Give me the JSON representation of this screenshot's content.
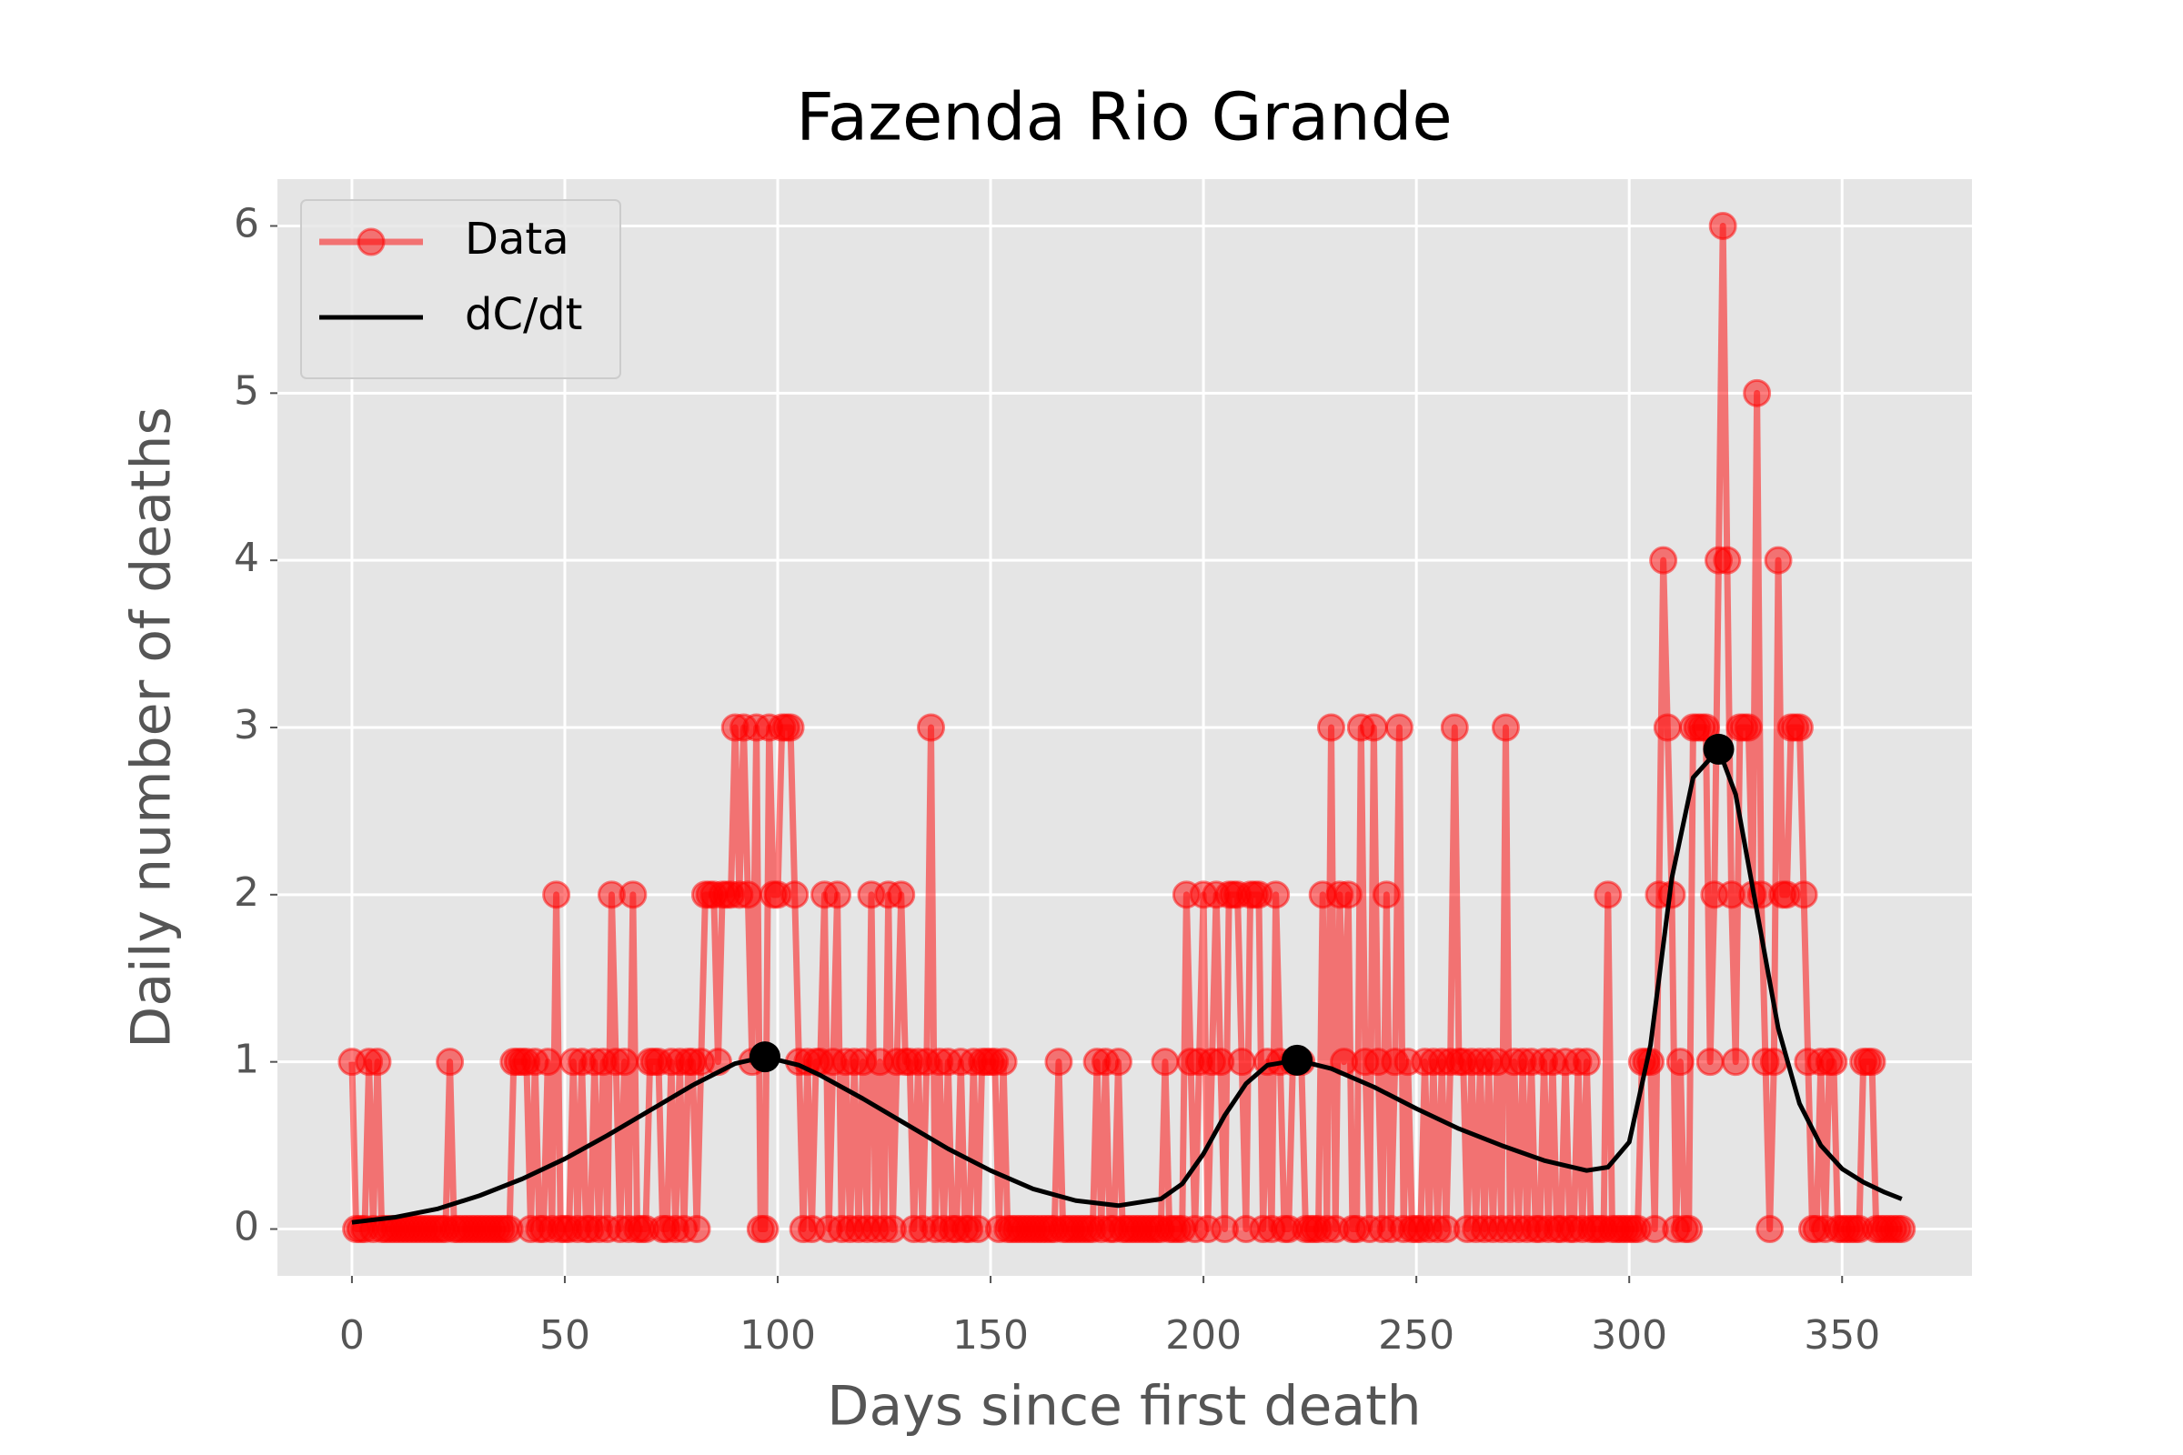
{
  "chart_data": {
    "type": "line",
    "title": "Fazenda Rio Grande",
    "xlabel": "Days since first death",
    "ylabel": "Daily number of deaths",
    "xlim": [
      -17.5,
      380.5
    ],
    "ylim": [
      -0.28,
      6.28
    ],
    "xticks": [
      0,
      50,
      100,
      150,
      200,
      250,
      300,
      350
    ],
    "yticks": [
      0,
      1,
      2,
      3,
      4,
      5,
      6
    ],
    "grid": true,
    "legend": "upper left",
    "series": [
      {
        "name": "Data",
        "color": "#ff0000",
        "alpha": 0.5,
        "marker": true,
        "x": [
          0,
          1,
          2,
          3,
          4,
          5,
          6,
          7,
          8,
          9,
          10,
          11,
          12,
          13,
          14,
          15,
          16,
          17,
          18,
          19,
          20,
          21,
          22,
          23,
          24,
          25,
          26,
          27,
          28,
          29,
          30,
          31,
          32,
          33,
          34,
          35,
          36,
          37,
          38,
          39,
          40,
          41,
          42,
          43,
          44,
          45,
          46,
          47,
          48,
          49,
          50,
          51,
          52,
          53,
          54,
          55,
          56,
          57,
          58,
          59,
          60,
          61,
          62,
          63,
          64,
          65,
          66,
          67,
          68,
          69,
          70,
          71,
          72,
          73,
          74,
          75,
          76,
          77,
          78,
          79,
          80,
          81,
          82,
          83,
          84,
          85,
          86,
          87,
          88,
          89,
          90,
          91,
          92,
          93,
          94,
          95,
          96,
          97,
          98,
          99,
          100,
          101,
          102,
          103,
          104,
          105,
          106,
          107,
          108,
          109,
          110,
          111,
          112,
          113,
          114,
          115,
          116,
          117,
          118,
          119,
          120,
          121,
          122,
          123,
          124,
          125,
          126,
          127,
          128,
          129,
          130,
          131,
          132,
          133,
          134,
          135,
          136,
          137,
          138,
          139,
          140,
          141,
          142,
          143,
          144,
          145,
          146,
          147,
          148,
          149,
          150,
          151,
          152,
          153,
          154,
          155,
          156,
          157,
          158,
          159,
          160,
          161,
          162,
          163,
          164,
          165,
          166,
          167,
          168,
          169,
          170,
          171,
          172,
          173,
          174,
          175,
          176,
          177,
          178,
          179,
          180,
          181,
          182,
          183,
          184,
          185,
          186,
          187,
          188,
          189,
          190,
          191,
          192,
          193,
          194,
          195,
          196,
          197,
          198,
          199,
          200,
          201,
          202,
          203,
          204,
          205,
          206,
          207,
          208,
          209,
          210,
          211,
          212,
          213,
          214,
          215,
          216,
          217,
          218,
          219,
          220,
          221,
          222,
          223,
          224,
          225,
          226,
          227,
          228,
          229,
          230,
          231,
          232,
          233,
          234,
          235,
          236,
          237,
          238,
          239,
          240,
          241,
          242,
          243,
          244,
          245,
          246,
          247,
          248,
          249,
          250,
          251,
          252,
          253,
          254,
          255,
          256,
          257,
          258,
          259,
          260,
          261,
          262,
          263,
          264,
          265,
          266,
          267,
          268,
          269,
          270,
          271,
          272,
          273,
          274,
          275,
          276,
          277,
          278,
          279,
          280,
          281,
          282,
          283,
          284,
          285,
          286,
          287,
          288,
          289,
          290,
          291,
          292,
          293,
          294,
          295,
          296,
          297,
          298,
          299,
          300,
          301,
          302,
          303,
          304,
          305,
          306,
          307,
          308,
          309,
          310,
          311,
          312,
          313,
          314,
          315,
          316,
          317,
          318,
          319,
          320,
          321,
          322,
          323,
          324,
          325,
          326,
          327,
          328,
          329,
          330,
          331,
          332,
          333,
          334,
          335,
          336,
          337,
          338,
          339,
          340,
          341,
          342,
          343,
          344,
          345,
          346,
          347,
          348,
          349,
          350,
          351,
          352,
          353,
          354,
          355,
          356,
          357,
          358,
          359,
          360,
          361,
          362,
          363,
          364
        ],
        "values": [
          1,
          0,
          0,
          0,
          1,
          0,
          1,
          0,
          0,
          0,
          0,
          0,
          0,
          0,
          0,
          0,
          0,
          0,
          0,
          0,
          0,
          0,
          0,
          1,
          0,
          0,
          0,
          0,
          0,
          0,
          0,
          0,
          0,
          0,
          0,
          0,
          0,
          0,
          1,
          1,
          1,
          1,
          0,
          1,
          0,
          0,
          1,
          0,
          2,
          0,
          0,
          0,
          1,
          0,
          1,
          0,
          0,
          1,
          0,
          1,
          0,
          2,
          1,
          0,
          1,
          0,
          2,
          0,
          0,
          0,
          1,
          1,
          1,
          0,
          0,
          1,
          0,
          1,
          0,
          1,
          1,
          0,
          1,
          2,
          2,
          2,
          1,
          2,
          2,
          2,
          3,
          2,
          3,
          2,
          1,
          3,
          0,
          0,
          3,
          2,
          2,
          3,
          3,
          3,
          2,
          1,
          0,
          1,
          0,
          1,
          1,
          2,
          0,
          1,
          2,
          0,
          1,
          0,
          1,
          0,
          1,
          0,
          2,
          0,
          1,
          0,
          2,
          0,
          1,
          2,
          1,
          1,
          0,
          1,
          0,
          1,
          3,
          0,
          1,
          0,
          1,
          0,
          0,
          1,
          0,
          0,
          1,
          0,
          1,
          1,
          1,
          1,
          0,
          1,
          0,
          0,
          0,
          0,
          0,
          0,
          0,
          0,
          0,
          0,
          0,
          0,
          1,
          0,
          0,
          0,
          0,
          0,
          0,
          0,
          0,
          1,
          0,
          1,
          0,
          0,
          1,
          0,
          0,
          0,
          0,
          0,
          0,
          0,
          0,
          0,
          0,
          1,
          0,
          0,
          0,
          0,
          2,
          1,
          0,
          1,
          2,
          0,
          1,
          2,
          1,
          0,
          2,
          2,
          2,
          1,
          0,
          2,
          2,
          2,
          0,
          1,
          0,
          2,
          1,
          0,
          0,
          1,
          1,
          1,
          0,
          0,
          0,
          0,
          2,
          0,
          3,
          0,
          2,
          1,
          2,
          0,
          0,
          3,
          1,
          0,
          3,
          1,
          0,
          2,
          0,
          1,
          3,
          0,
          1,
          0,
          0,
          0,
          1,
          0,
          1,
          0,
          1,
          0,
          1,
          3,
          1,
          1,
          0,
          1,
          0,
          1,
          0,
          1,
          0,
          1,
          0,
          3,
          0,
          1,
          0,
          1,
          0,
          1,
          0,
          0,
          1,
          0,
          1,
          0,
          0,
          1,
          0,
          0,
          1,
          0,
          1,
          0,
          0,
          0,
          0,
          2,
          0,
          0,
          0,
          0,
          0,
          0,
          0,
          1,
          1,
          1,
          0,
          2,
          4,
          3,
          2,
          0,
          1,
          0,
          0,
          3,
          3,
          3,
          3,
          1,
          2,
          4,
          6,
          4,
          2,
          1,
          3,
          3,
          3,
          2,
          5,
          2,
          1,
          0,
          1,
          4,
          2,
          2,
          3,
          3,
          3,
          2,
          1,
          0,
          0,
          1,
          0,
          1,
          1,
          0,
          0,
          0,
          0,
          0,
          0,
          1,
          1,
          1,
          0,
          0,
          0,
          0,
          0,
          0,
          0
        ]
      },
      {
        "name": "dC/dt",
        "color": "#000000",
        "x": [
          0,
          10,
          20,
          30,
          40,
          50,
          60,
          70,
          80,
          90,
          97,
          105,
          110,
          120,
          130,
          140,
          150,
          160,
          170,
          180,
          190,
          195,
          200,
          205,
          210,
          215,
          222,
          230,
          240,
          250,
          260,
          270,
          280,
          290,
          295,
          300,
          305,
          310,
          315,
          321,
          325,
          330,
          335,
          340,
          345,
          350,
          355,
          360,
          364
        ],
        "values": [
          0.04,
          0.07,
          0.12,
          0.2,
          0.3,
          0.42,
          0.56,
          0.71,
          0.86,
          0.99,
          1.03,
          0.98,
          0.92,
          0.78,
          0.63,
          0.48,
          0.35,
          0.24,
          0.17,
          0.14,
          0.18,
          0.27,
          0.45,
          0.68,
          0.87,
          0.98,
          1.01,
          0.96,
          0.85,
          0.72,
          0.6,
          0.5,
          0.41,
          0.35,
          0.37,
          0.52,
          1.1,
          2.1,
          2.7,
          2.87,
          2.6,
          1.9,
          1.2,
          0.75,
          0.5,
          0.36,
          0.28,
          0.22,
          0.18
        ]
      }
    ],
    "peaks": {
      "color": "#000000",
      "x": [
        97,
        222,
        321
      ],
      "values": [
        1.03,
        1.01,
        2.87
      ]
    }
  }
}
